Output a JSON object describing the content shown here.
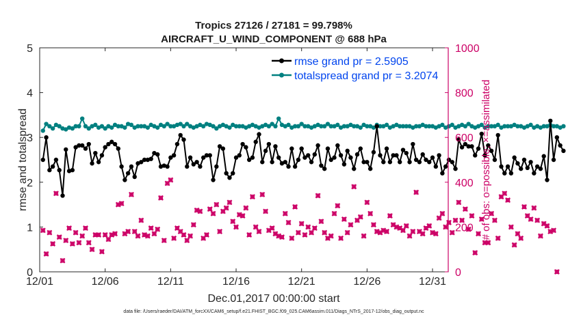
{
  "chart_data": {
    "type": "line",
    "title_line1": "Tropics 27126 / 27181 = 99.798%",
    "title_line2": "AIRCRAFT_U_WIND_COMPONENT @ 688 hPa",
    "xlabel": "Dec.01,2017 00:00:00 start",
    "ylabel": "rmse and totalspread",
    "ylabel_right": "# of obs: o=possible; ×=assimilated",
    "footer": "data file: /Users/raeder/DAI/ATM_forcXX/CAM6_setup/f.e21.FHIST_BGC.f09_025.CAM6assim.011/Diags_NTrS_2017-12/obs_diag_output.nc",
    "xlim": [
      0,
      31.2
    ],
    "ylim": [
      0,
      5
    ],
    "ylim_right": [
      0,
      1000
    ],
    "x_ticks": [
      0,
      5,
      10,
      15,
      20,
      25,
      30
    ],
    "x_tick_labels": [
      "12/01",
      "12/06",
      "12/11",
      "12/16",
      "12/21",
      "12/26",
      "12/31"
    ],
    "y_ticks": [
      0,
      1,
      2,
      3,
      4,
      5
    ],
    "y_tick_labels": [
      "0",
      "1",
      "2",
      "3",
      "4",
      "5"
    ],
    "y_right_ticks": [
      0,
      200,
      400,
      600,
      800,
      1000
    ],
    "y_right_tick_labels": [
      "0",
      "200",
      "400",
      "600",
      "800",
      "1000"
    ],
    "step_days": 0.25,
    "series": [
      {
        "name": "rmse",
        "legend_label": "rmse grand pr = 2.5905",
        "color": "#000000",
        "axis": "left",
        "values": [
          2.5,
          3.0,
          2.27,
          2.35,
          2.5,
          2.27,
          1.7,
          2.73,
          2.25,
          2.27,
          2.78,
          2.82,
          2.82,
          2.75,
          2.85,
          2.42,
          2.65,
          2.45,
          2.6,
          2.78,
          2.85,
          2.9,
          2.85,
          2.75,
          2.35,
          2.05,
          2.2,
          2.35,
          2.12,
          2.42,
          2.45,
          2.5,
          2.5,
          2.52,
          2.65,
          2.62,
          2.35,
          2.37,
          2.35,
          2.55,
          2.6,
          2.85,
          3.05,
          2.95,
          2.35,
          2.55,
          2.4,
          2.45,
          2.35,
          2.55,
          2.6,
          2.6,
          2.05,
          2.35,
          2.8,
          2.75,
          2.2,
          2.1,
          2.2,
          2.55,
          2.6,
          2.85,
          2.78,
          2.5,
          2.55,
          2.9,
          3.07,
          2.45,
          2.7,
          2.85,
          2.45,
          2.8,
          2.55,
          2.42,
          2.45,
          2.35,
          2.75,
          2.35,
          2.5,
          2.75,
          2.55,
          2.6,
          2.45,
          2.62,
          2.82,
          2.37,
          2.3,
          2.75,
          2.5,
          2.55,
          2.82,
          2.6,
          2.4,
          2.7,
          2.55,
          2.3,
          2.62,
          2.75,
          2.45,
          2.45,
          2.3,
          2.67,
          3.25,
          2.6,
          2.45,
          2.75,
          2.45,
          2.6,
          2.6,
          2.45,
          2.72,
          2.65,
          2.45,
          2.85,
          2.5,
          2.45,
          2.62,
          2.5,
          2.45,
          2.55,
          2.35,
          2.6,
          2.2,
          2.35,
          2.5,
          2.45,
          2.3,
          2.95,
          2.78,
          2.85,
          2.8,
          2.8,
          2.6,
          2.75,
          3.08,
          2.6,
          2.82,
          2.7,
          2.5,
          3.05,
          2.35,
          2.2,
          2.35,
          2.2,
          2.55,
          2.42,
          2.3,
          2.5,
          2.32,
          2.45,
          2.2,
          2.35,
          2.3,
          2.58,
          2.05,
          3.37,
          2.5,
          3.0,
          2.82,
          2.7
        ]
      },
      {
        "name": "totalspread",
        "legend_label": "totalspread grand pr = 3.2074",
        "color": "#008080",
        "axis": "left",
        "values": [
          3.15,
          3.3,
          3.25,
          3.2,
          3.28,
          3.25,
          3.2,
          3.18,
          3.22,
          3.2,
          3.25,
          3.25,
          3.42,
          3.25,
          3.2,
          3.25,
          3.28,
          3.22,
          3.25,
          3.2,
          3.25,
          3.22,
          3.28,
          3.25,
          3.25,
          3.22,
          3.3,
          3.28,
          3.22,
          3.25,
          3.25,
          3.25,
          3.22,
          3.28,
          3.25,
          3.22,
          3.28,
          3.25,
          3.3,
          3.25,
          3.25,
          3.28,
          3.3,
          3.25,
          3.3,
          3.25,
          3.22,
          3.25,
          3.28,
          3.25,
          3.3,
          3.28,
          3.25,
          3.2,
          3.25,
          3.28,
          3.25,
          3.22,
          3.28,
          3.25,
          3.25,
          3.25,
          3.22,
          3.25,
          3.28,
          3.25,
          3.22,
          3.25,
          3.28,
          3.25,
          3.3,
          3.25,
          3.42,
          3.28,
          3.25,
          3.28,
          3.22,
          3.25,
          3.25,
          3.3,
          3.25,
          3.25,
          3.22,
          3.25,
          3.28,
          3.25,
          3.25,
          3.3,
          3.25,
          3.25,
          3.28,
          3.22,
          3.25,
          3.25,
          3.28,
          3.25,
          3.25,
          3.22,
          3.28,
          3.25,
          3.25,
          3.22,
          3.28,
          3.25,
          3.25,
          3.28,
          3.22,
          3.25,
          3.28,
          3.25,
          3.25,
          3.25,
          3.25,
          3.22,
          3.25,
          3.25,
          3.28,
          3.25,
          3.25,
          3.25,
          3.22,
          3.25,
          3.28,
          3.22,
          3.25,
          3.28,
          3.22,
          3.25,
          3.28,
          3.25,
          3.3,
          3.25,
          3.22,
          3.25,
          3.28,
          3.22,
          3.25,
          3.25,
          3.25,
          3.28,
          3.22,
          3.25,
          3.25,
          3.25,
          3.28,
          3.25,
          3.25,
          3.22,
          3.25,
          3.28,
          3.22,
          3.25,
          3.22,
          3.25,
          3.25,
          3.28,
          3.25,
          3.25,
          3.22,
          3.25
        ]
      },
      {
        "name": "obs_possible",
        "marker": "circle",
        "color": "#cc0066",
        "axis": "right",
        "values": [
          185,
          80,
          175,
          125,
          350,
          155,
          50,
          140,
          195,
          125,
          175,
          130,
          160,
          195,
          130,
          100,
          165,
          165,
          90,
          165,
          145,
          165,
          170,
          300,
          305,
          170,
          180,
          345,
          180,
          160,
          230,
          165,
          160,
          195,
          170,
          190,
          330,
          140,
          395,
          410,
          150,
          195,
          180,
          165,
          140,
          160,
          210,
          275,
          270,
          150,
          165,
          280,
          260,
          300,
          180,
          270,
          285,
          310,
          225,
          200,
          255,
          250,
          285,
          165,
          335,
          200,
          180,
          345,
          270,
          185,
          195,
          170,
          160,
          155,
          260,
          220,
          150,
          290,
          175,
          215,
          165,
          200,
          175,
          195,
          340,
          225,
          175,
          150,
          160,
          260,
          295,
          150,
          235,
          175,
          210,
          380,
          230,
          245,
          160,
          310,
          260,
          210,
          180,
          175,
          185,
          180,
          250,
          210,
          200,
          195,
          185,
          205,
          160,
          180,
          355,
          180,
          170,
          195,
          205,
          175,
          170,
          240,
          260,
          200,
          220,
          175,
          230,
          310,
          230,
          280,
          190,
          250,
          85,
          170,
          235,
          130,
          130,
          260,
          230,
          150,
          335,
          350,
          320,
          200,
          120,
          170,
          150,
          290,
          250,
          235,
          285,
          230,
          160,
          215,
          205,
          180,
          185,
          0
        ]
      },
      {
        "name": "obs_assimilated",
        "marker": "x",
        "color": "#cc0066",
        "axis": "right",
        "values": [
          185,
          80,
          175,
          125,
          350,
          155,
          50,
          140,
          195,
          125,
          175,
          130,
          160,
          195,
          130,
          100,
          165,
          165,
          90,
          165,
          145,
          165,
          170,
          300,
          305,
          170,
          180,
          345,
          180,
          160,
          230,
          165,
          160,
          195,
          170,
          190,
          330,
          140,
          395,
          410,
          150,
          195,
          180,
          165,
          140,
          160,
          210,
          275,
          270,
          150,
          165,
          280,
          260,
          300,
          180,
          270,
          285,
          310,
          225,
          200,
          255,
          250,
          285,
          165,
          335,
          200,
          180,
          345,
          270,
          185,
          195,
          170,
          160,
          155,
          260,
          220,
          150,
          290,
          175,
          215,
          165,
          200,
          175,
          195,
          340,
          225,
          175,
          150,
          160,
          260,
          295,
          150,
          235,
          175,
          210,
          380,
          230,
          245,
          160,
          310,
          260,
          210,
          180,
          175,
          185,
          180,
          250,
          210,
          200,
          195,
          185,
          205,
          160,
          180,
          355,
          180,
          170,
          195,
          205,
          175,
          170,
          240,
          260,
          200,
          220,
          175,
          230,
          310,
          230,
          280,
          190,
          250,
          85,
          170,
          235,
          130,
          130,
          260,
          230,
          150,
          335,
          350,
          320,
          200,
          120,
          170,
          150,
          290,
          250,
          235,
          285,
          230,
          160,
          215,
          205,
          180,
          185,
          0
        ]
      }
    ]
  }
}
